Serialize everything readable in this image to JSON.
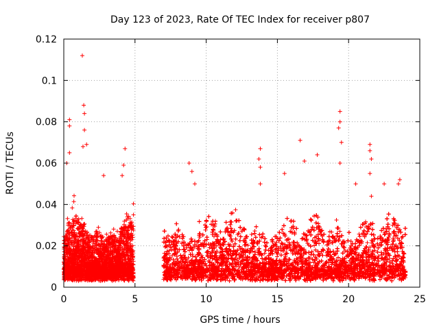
{
  "chart_data": {
    "type": "scatter",
    "title": "Day 123 of 2023, Rate Of TEC Index for receiver p807",
    "xlabel": "GPS time / hours",
    "ylabel": "ROTI / TECUs",
    "xlim": [
      0,
      25
    ],
    "ylim": [
      0,
      0.12
    ],
    "xticks": [
      0,
      5,
      10,
      15,
      20,
      25
    ],
    "xtick_labels": [
      "0",
      "5",
      "10",
      "15",
      "20",
      "25"
    ],
    "yticks": [
      0,
      0.02,
      0.04,
      0.06,
      0.08,
      0.1,
      0.12
    ],
    "ytick_labels": [
      "0",
      "0.02",
      "0.04",
      "0.06",
      "0.08",
      "0.1",
      "0.12"
    ],
    "grid": true,
    "marker": "plus",
    "marker_color": "#ff0000",
    "series": [
      {
        "name": "ROTI",
        "segments": [
          [
            0,
            4.9
          ],
          [
            7.0,
            24.0
          ]
        ],
        "data_gap": [
          4.9,
          7.0
        ],
        "dense_band": [
          0.003,
          0.025
        ],
        "notable_points": [
          {
            "x": 1.3,
            "y": 0.112
          },
          {
            "x": 1.4,
            "y": 0.088
          },
          {
            "x": 1.45,
            "y": 0.084
          },
          {
            "x": 0.4,
            "y": 0.081
          },
          {
            "x": 0.4,
            "y": 0.078
          },
          {
            "x": 1.45,
            "y": 0.076
          },
          {
            "x": 1.6,
            "y": 0.069
          },
          {
            "x": 1.35,
            "y": 0.068
          },
          {
            "x": 0.4,
            "y": 0.065
          },
          {
            "x": 0.2,
            "y": 0.06
          },
          {
            "x": 2.8,
            "y": 0.054
          },
          {
            "x": 4.1,
            "y": 0.054
          },
          {
            "x": 4.3,
            "y": 0.067
          },
          {
            "x": 4.2,
            "y": 0.059
          },
          {
            "x": 8.8,
            "y": 0.06
          },
          {
            "x": 9.0,
            "y": 0.056
          },
          {
            "x": 9.2,
            "y": 0.05
          },
          {
            "x": 13.8,
            "y": 0.067
          },
          {
            "x": 13.7,
            "y": 0.062
          },
          {
            "x": 13.8,
            "y": 0.058
          },
          {
            "x": 13.8,
            "y": 0.05
          },
          {
            "x": 15.5,
            "y": 0.055
          },
          {
            "x": 16.6,
            "y": 0.071
          },
          {
            "x": 16.9,
            "y": 0.061
          },
          {
            "x": 17.8,
            "y": 0.064
          },
          {
            "x": 19.4,
            "y": 0.085
          },
          {
            "x": 19.4,
            "y": 0.08
          },
          {
            "x": 19.3,
            "y": 0.077
          },
          {
            "x": 19.5,
            "y": 0.07
          },
          {
            "x": 19.4,
            "y": 0.06
          },
          {
            "x": 20.5,
            "y": 0.05
          },
          {
            "x": 21.5,
            "y": 0.069
          },
          {
            "x": 21.5,
            "y": 0.066
          },
          {
            "x": 21.6,
            "y": 0.062
          },
          {
            "x": 21.5,
            "y": 0.055
          },
          {
            "x": 21.6,
            "y": 0.044
          },
          {
            "x": 22.5,
            "y": 0.05
          },
          {
            "x": 23.6,
            "y": 0.052
          },
          {
            "x": 23.5,
            "y": 0.05
          }
        ]
      }
    ]
  }
}
